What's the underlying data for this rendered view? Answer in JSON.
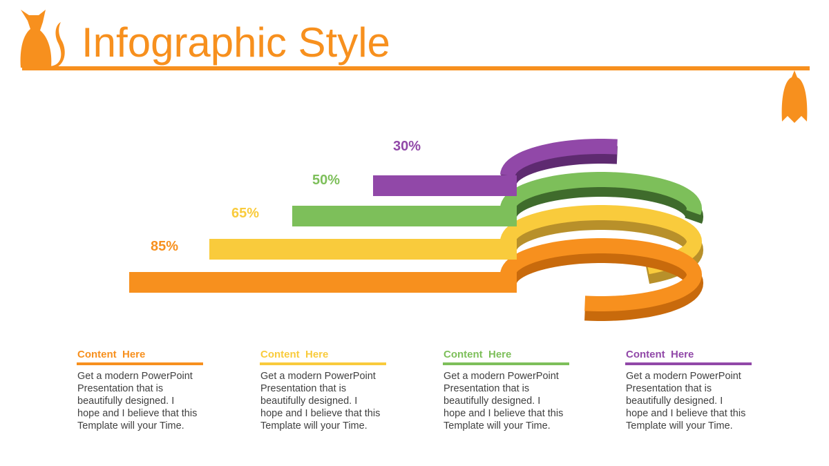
{
  "header": {
    "title": "Infographic Style"
  },
  "rings": [
    {
      "label": "85%",
      "color": "#f7901e",
      "shade": "#c86a0c"
    },
    {
      "label": "65%",
      "color": "#f9cb3c",
      "shade": "#b8902a"
    },
    {
      "label": "50%",
      "color": "#7dbf5a",
      "shade": "#3f6b2c"
    },
    {
      "label": "30%",
      "color": "#9148a8",
      "shade": "#5e2a70"
    }
  ],
  "columns": [
    {
      "heading": "Content  Here",
      "color": "#f7901e",
      "body": [
        "Get a modern PowerPoint",
        "Presentation that is",
        "beautifully designed. I",
        "hope and I believe that this",
        "Template will your Time."
      ]
    },
    {
      "heading": "Content  Here",
      "color": "#f9cb3c",
      "body": [
        "Get a modern PowerPoint",
        "Presentation that is",
        "beautifully designed. I",
        "hope and I believe that this",
        "Template will your Time."
      ]
    },
    {
      "heading": "Content  Here",
      "color": "#7dbf5a",
      "body": [
        "Get a modern PowerPoint",
        "Presentation that is",
        "beautifully designed. I",
        "hope and I believe that this",
        "Template will your Time."
      ]
    },
    {
      "heading": "Content  Here",
      "color": "#9148a8",
      "body": [
        "Get a modern PowerPoint",
        "Presentation that is",
        "beautifully designed. I",
        "hope and I believe that this",
        "Template will your Time."
      ]
    }
  ]
}
